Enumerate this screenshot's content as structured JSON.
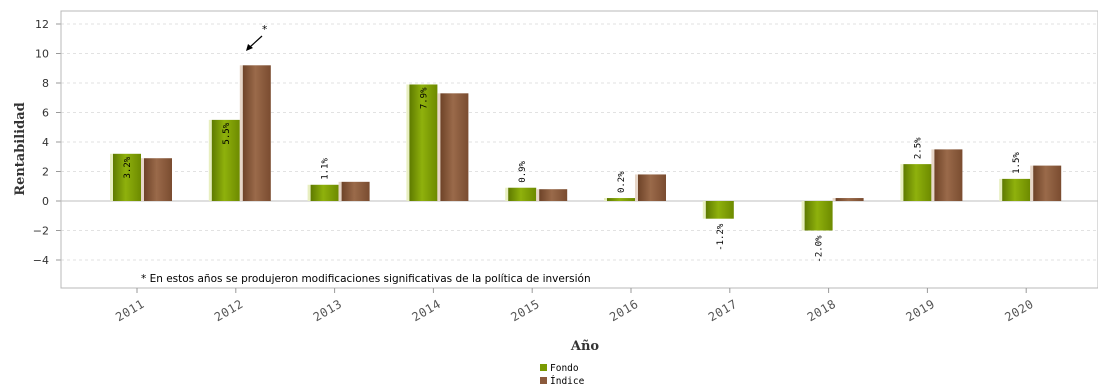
{
  "chart_data": {
    "type": "bar",
    "categories": [
      "2011",
      "2012",
      "2013",
      "2014",
      "2015",
      "2016",
      "2017",
      "2018",
      "2019",
      "2020"
    ],
    "series": [
      {
        "name": "Fondo",
        "values": [
          3.2,
          5.5,
          1.1,
          7.9,
          0.9,
          0.2,
          -1.2,
          -2.0,
          2.5,
          1.5
        ],
        "color": "#7a9a01"
      },
      {
        "name": "Índice",
        "values": [
          2.9,
          9.2,
          1.3,
          7.3,
          0.8,
          1.8,
          null,
          0.2,
          3.5,
          2.4
        ],
        "color": "#8b5a3c"
      }
    ],
    "data_labels": [
      "3.2%",
      "5.5%",
      "1.1%",
      "7.9%",
      "0.9%",
      "0.2%",
      "-1.2%",
      "-2.0%",
      "2.5%",
      "1.5%"
    ],
    "xlabel": "Año",
    "ylabel": "Rentabilidad",
    "ylim": [
      -6,
      13
    ],
    "yticks": [
      12,
      10,
      8,
      6,
      4,
      2,
      0,
      -2,
      -4
    ],
    "grid": true,
    "legend_position": "bottom-center",
    "annotation_marker": "*",
    "annotation_year": "2012",
    "footnote": "* En estos años se produjeron modificaciones significativas de la política de inversión"
  }
}
